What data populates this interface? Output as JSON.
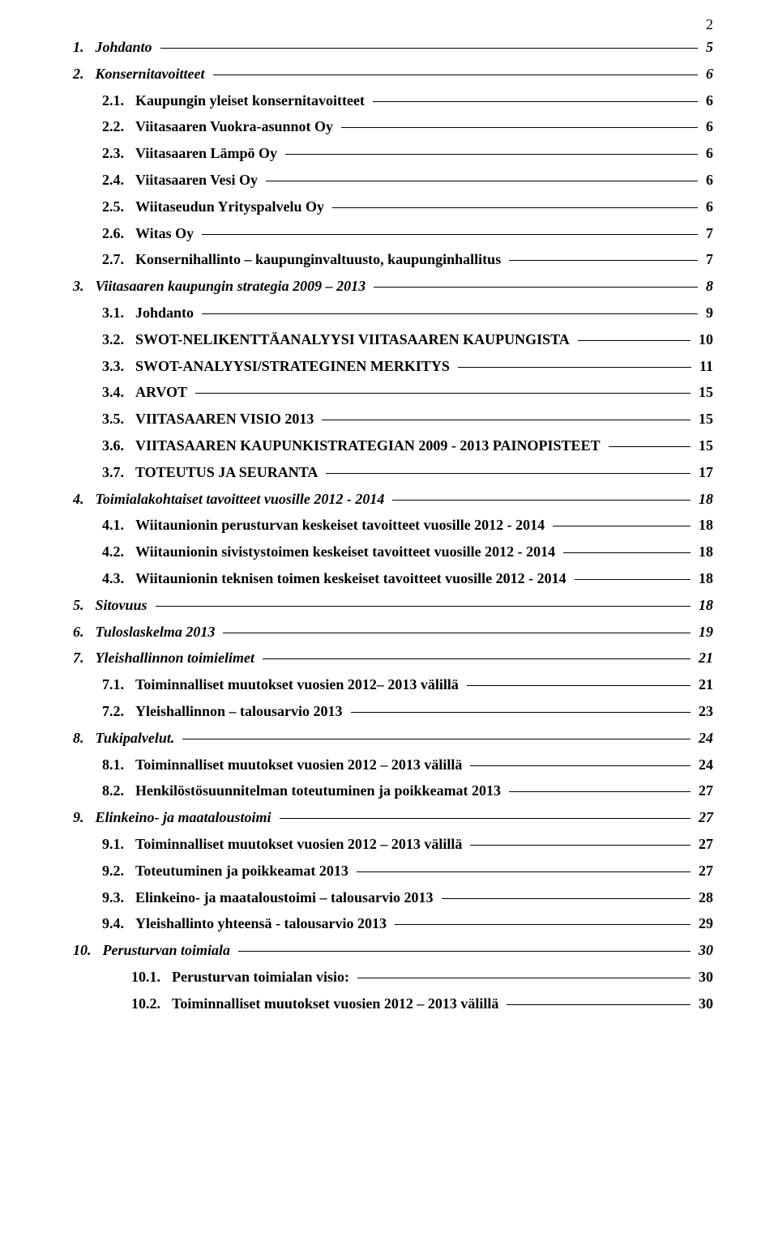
{
  "page_number": "2",
  "toc": [
    {
      "level": 0,
      "num": "1.",
      "title": "Johdanto",
      "page": "5"
    },
    {
      "level": 0,
      "num": "2.",
      "title": "Konsernitavoitteet",
      "page": "6"
    },
    {
      "level": 1,
      "num": "2.1.",
      "title": "Kaupungin yleiset konsernitavoitteet",
      "page": "6"
    },
    {
      "level": 1,
      "num": "2.2.",
      "title": "Viitasaaren Vuokra-asunnot Oy",
      "page": "6"
    },
    {
      "level": 1,
      "num": "2.3.",
      "title": "Viitasaaren Lämpö Oy",
      "page": "6"
    },
    {
      "level": 1,
      "num": "2.4.",
      "title": "Viitasaaren Vesi Oy",
      "page": "6"
    },
    {
      "level": 1,
      "num": "2.5.",
      "title": "Wiitaseudun Yrityspalvelu Oy",
      "page": "6"
    },
    {
      "level": 1,
      "num": "2.6.",
      "title": "Witas Oy",
      "page": "7"
    },
    {
      "level": 1,
      "num": "2.7.",
      "title": "Konsernihallinto – kaupunginvaltuusto, kaupunginhallitus",
      "page": "7"
    },
    {
      "level": 0,
      "num": "3.",
      "title": "Viitasaaren kaupungin strategia 2009 – 2013",
      "page": "8"
    },
    {
      "level": 1,
      "num": "3.1.",
      "title": "Johdanto",
      "page": "9"
    },
    {
      "level": 1,
      "num": "3.2.",
      "title": "SWOT-NELIKENTTÄANALYYSI VIITASAAREN KAUPUNGISTA",
      "page": "10"
    },
    {
      "level": 1,
      "num": "3.3.",
      "title": "SWOT-ANALYYSI/STRATEGINEN MERKITYS",
      "page": "11"
    },
    {
      "level": 1,
      "num": "3.4.",
      "title": "ARVOT",
      "page": "15"
    },
    {
      "level": 1,
      "num": "3.5.",
      "title": "VIITASAAREN VISIO 2013",
      "page": "15"
    },
    {
      "level": 1,
      "num": "3.6.",
      "title": "VIITASAAREN KAUPUNKISTRATEGIAN 2009 - 2013 PAINOPISTEET",
      "page": "15"
    },
    {
      "level": 1,
      "num": "3.7.",
      "title": "TOTEUTUS JA SEURANTA",
      "page": "17"
    },
    {
      "level": 0,
      "num": "4.",
      "title": "Toimialakohtaiset tavoitteet vuosille 2012 - 2014",
      "page": "18"
    },
    {
      "level": 1,
      "num": "4.1.",
      "title": "Wiitaunionin perusturvan keskeiset tavoitteet vuosille 2012 - 2014",
      "page": "18"
    },
    {
      "level": 1,
      "num": "4.2.",
      "title": "Wiitaunionin sivistystoimen keskeiset tavoitteet vuosille 2012 - 2014",
      "page": "18"
    },
    {
      "level": 1,
      "num": "4.3.",
      "title": "Wiitaunionin teknisen toimen keskeiset tavoitteet vuosille 2012 - 2014",
      "page": "18"
    },
    {
      "level": 0,
      "num": "5.",
      "title": "Sitovuus",
      "page": "18"
    },
    {
      "level": 0,
      "num": "6.",
      "title": "Tuloslaskelma 2013",
      "page": "19"
    },
    {
      "level": 0,
      "num": "7.",
      "title": "Yleishallinnon toimielimet",
      "page": "21"
    },
    {
      "level": 1,
      "num": "7.1.",
      "title": "Toiminnalliset muutokset vuosien 2012– 2013 välillä",
      "page": "21"
    },
    {
      "level": 1,
      "num": "7.2.",
      "title": "Yleishallinnon – talousarvio 2013",
      "page": "23"
    },
    {
      "level": 0,
      "num": "8.",
      "title": "Tukipalvelut.",
      "page": "24"
    },
    {
      "level": 1,
      "num": "8.1.",
      "title": "Toiminnalliset muutokset vuosien 2012 – 2013 välillä",
      "page": "24"
    },
    {
      "level": 1,
      "num": "8.2.",
      "title": "Henkilöstösuunnitelman toteutuminen ja poikkeamat 2013",
      "page": "27"
    },
    {
      "level": 0,
      "num": "9.",
      "title": "Elinkeino- ja maataloustoimi",
      "page": "27"
    },
    {
      "level": 1,
      "num": "9.1.",
      "title": "Toiminnalliset muutokset vuosien 2012 – 2013 välillä",
      "page": "27"
    },
    {
      "level": 1,
      "num": "9.2.",
      "title": "Toteutuminen ja poikkeamat 2013",
      "page": "27"
    },
    {
      "level": 1,
      "num": "9.3.",
      "title": "Elinkeino- ja maataloustoimi – talousarvio 2013",
      "page": "28"
    },
    {
      "level": 1,
      "num": "9.4.",
      "title": "Yleishallinto yhteensä - talousarvio 2013",
      "page": "29"
    },
    {
      "level": 0,
      "num": "10.",
      "title": "Perusturvan toimiala",
      "page": "30"
    },
    {
      "level": 2,
      "num": "10.1.",
      "title": "Perusturvan toimialan visio:",
      "page": "30"
    },
    {
      "level": 2,
      "num": "10.2.",
      "title": "Toiminnalliset muutokset vuosien 2012 – 2013 välillä",
      "page": "30"
    }
  ]
}
